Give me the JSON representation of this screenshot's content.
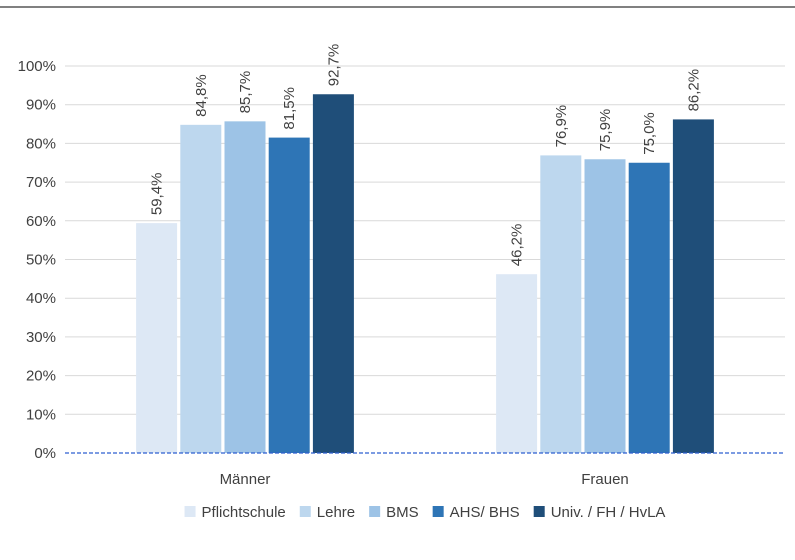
{
  "chart_data": {
    "type": "bar",
    "title": "",
    "xlabel": "",
    "ylabel": "",
    "categories": [
      "Männer",
      "Frauen"
    ],
    "ylim": [
      0,
      100
    ],
    "yticks": [
      0,
      10,
      20,
      30,
      40,
      50,
      60,
      70,
      80,
      90,
      100
    ],
    "ytick_labels": [
      "0%",
      "10%",
      "20%",
      "30%",
      "40%",
      "50%",
      "60%",
      "70%",
      "80%",
      "90%",
      "100%"
    ],
    "grid": true,
    "legend_position": "bottom",
    "series": [
      {
        "name": "Pflichtschule",
        "color": "#dde8f5",
        "values": [
          59.4,
          46.2
        ],
        "labels": [
          "59,4%",
          "46,2%"
        ]
      },
      {
        "name": "Lehre",
        "color": "#bdd7ee",
        "values": [
          84.8,
          76.9
        ],
        "labels": [
          "84,8%",
          "76,9%"
        ]
      },
      {
        "name": "BMS",
        "color": "#9dc3e6",
        "values": [
          85.7,
          75.9
        ],
        "labels": [
          "85,7%",
          "75,9%"
        ]
      },
      {
        "name": "AHS/ BHS",
        "color": "#2e75b6",
        "values": [
          81.5,
          75.0
        ],
        "labels": [
          "81,5%",
          "75,0%"
        ]
      },
      {
        "name": "Univ. / FH / HvLA",
        "color": "#1f4e79",
        "values": [
          92.7,
          86.2
        ],
        "labels": [
          "92,7%",
          "86,2%"
        ]
      }
    ]
  }
}
